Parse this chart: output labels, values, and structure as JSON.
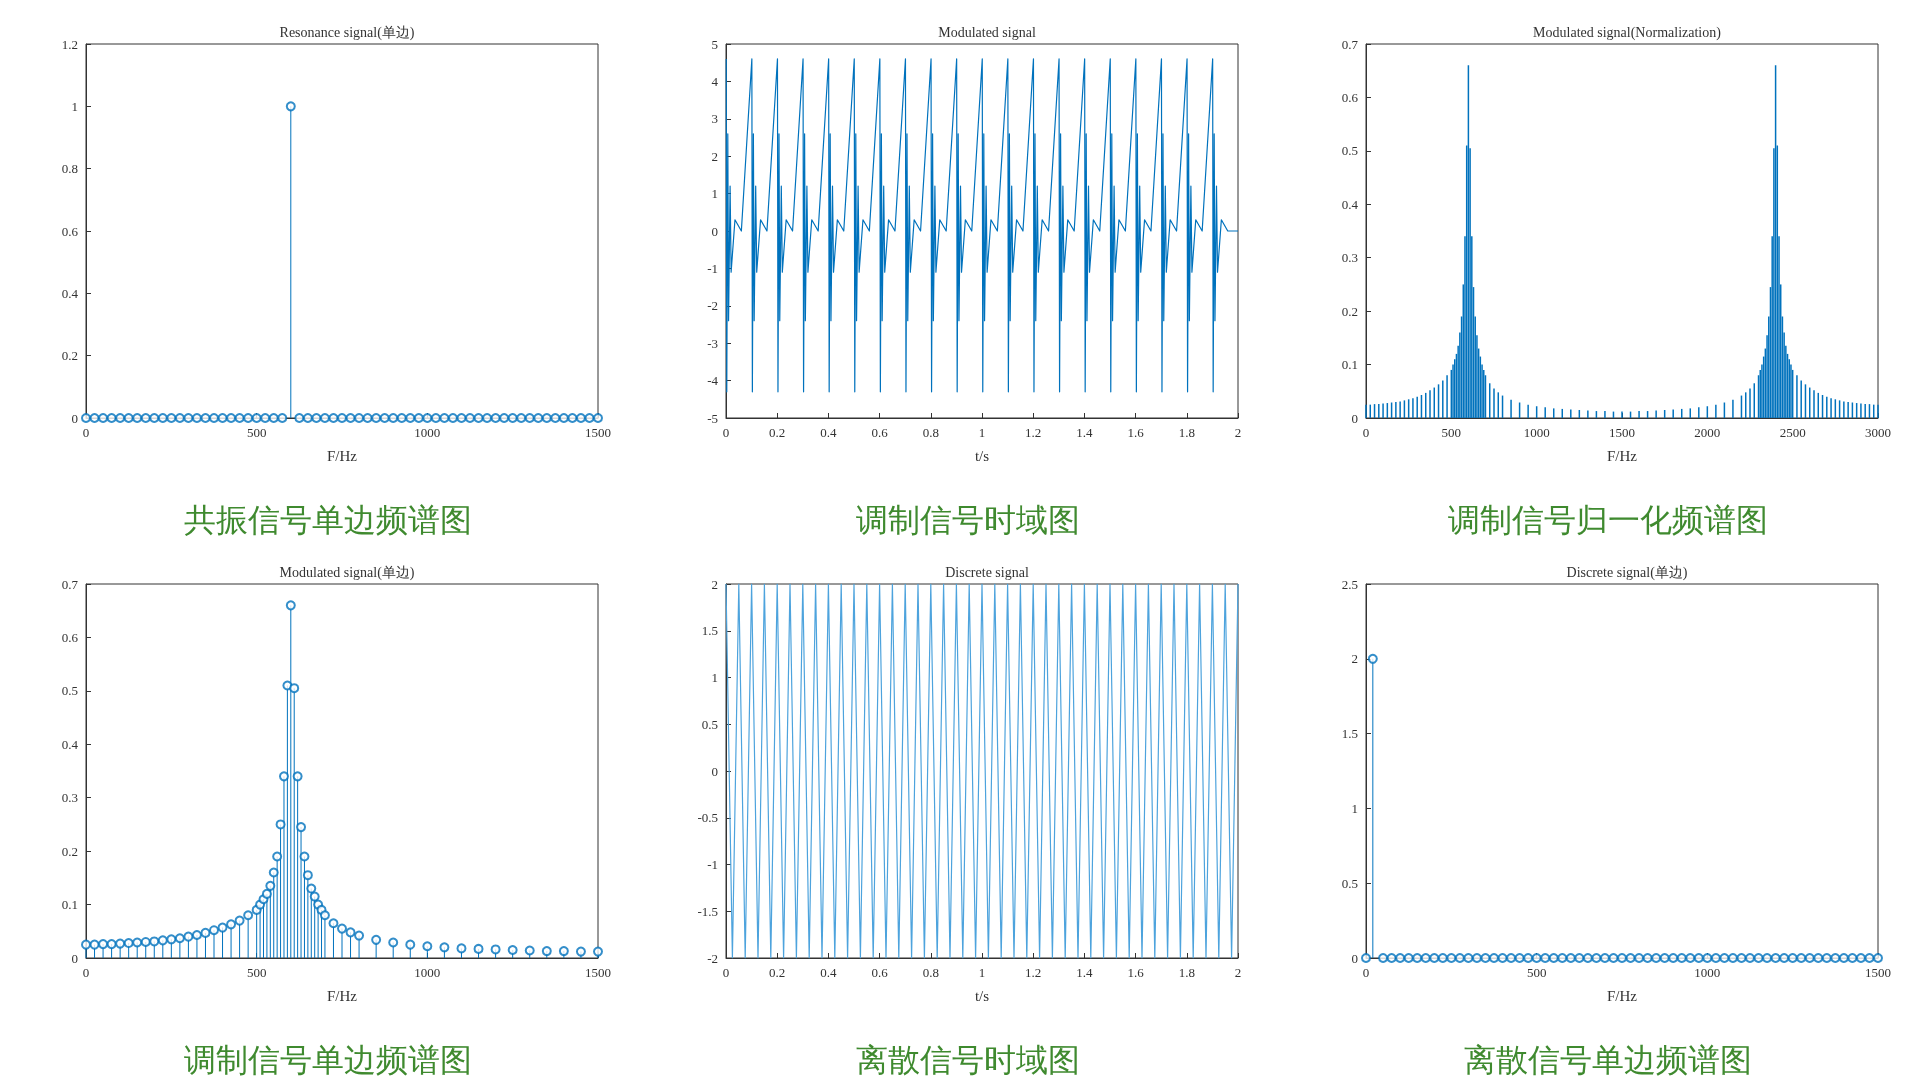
{
  "chart_data": [
    {
      "type": "lollipop",
      "title": "Resonance signal(单边)",
      "xlabel": "F/Hz",
      "xlim": [
        0,
        1500
      ],
      "ylim": [
        0,
        1.2
      ],
      "xticks": [
        0,
        500,
        1000,
        1500
      ],
      "yticks": [
        0,
        0.2,
        0.4,
        0.6,
        0.8,
        1,
        1.2
      ],
      "marker": "circle",
      "annotations": [
        "共振信号单边频谱图"
      ],
      "series": [
        {
          "color": "#0072bd",
          "x": [
            0,
            25,
            50,
            75,
            100,
            125,
            150,
            175,
            200,
            225,
            250,
            275,
            300,
            325,
            350,
            375,
            400,
            425,
            450,
            475,
            500,
            525,
            550,
            575,
            600,
            625,
            650,
            675,
            700,
            725,
            750,
            775,
            800,
            825,
            850,
            875,
            900,
            925,
            950,
            975,
            1000,
            1025,
            1050,
            1075,
            1100,
            1125,
            1150,
            1175,
            1200,
            1225,
            1250,
            1275,
            1300,
            1325,
            1350,
            1375,
            1400,
            1425,
            1450,
            1475,
            1500
          ],
          "values": [
            0,
            0,
            0,
            0,
            0,
            0,
            0,
            0,
            0,
            0,
            0,
            0,
            0,
            0,
            0,
            0,
            0,
            0,
            0,
            0,
            0,
            0,
            0,
            0,
            1,
            0,
            0,
            0,
            0,
            0,
            0,
            0,
            0,
            0,
            0,
            0,
            0,
            0,
            0,
            0,
            0,
            0,
            0,
            0,
            0,
            0,
            0,
            0,
            0,
            0,
            0,
            0,
            0,
            0,
            0,
            0,
            0,
            0,
            0,
            0,
            0
          ]
        }
      ]
    },
    {
      "type": "line",
      "title": "Modulated signal",
      "xlabel": "t/s",
      "xlim": [
        0,
        2
      ],
      "ylim": [
        -5,
        5
      ],
      "xticks": [
        0,
        0.2,
        0.4,
        0.6,
        0.8,
        1,
        1.2,
        1.4,
        1.6,
        1.8,
        2
      ],
      "yticks": [
        -5,
        -4,
        -3,
        -2,
        -1,
        0,
        1,
        2,
        3,
        4,
        5
      ],
      "annotations": [
        "调制信号时域图"
      ],
      "series": [
        {
          "color": "#0072bd",
          "x": [
            0.001,
            0.003,
            0.007,
            0.01,
            0.016,
            0.02,
            0.035,
            0.06,
            0.101,
            0.103,
            0.107,
            0.11,
            0.116,
            0.12,
            0.135,
            0.16,
            0.201,
            0.203,
            0.207,
            0.21,
            0.216,
            0.22,
            0.235,
            0.26,
            0.301,
            0.303,
            0.307,
            0.31,
            0.316,
            0.32,
            0.335,
            0.36,
            0.401,
            0.403,
            0.407,
            0.41,
            0.416,
            0.42,
            0.435,
            0.46,
            0.501,
            0.503,
            0.507,
            0.51,
            0.516,
            0.52,
            0.535,
            0.56,
            0.601,
            0.603,
            0.607,
            0.61,
            0.616,
            0.62,
            0.635,
            0.66,
            0.701,
            0.703,
            0.707,
            0.71,
            0.716,
            0.72,
            0.735,
            0.76,
            0.801,
            0.803,
            0.807,
            0.81,
            0.816,
            0.82,
            0.835,
            0.86,
            0.901,
            0.903,
            0.907,
            0.91,
            0.916,
            0.92,
            0.935,
            0.96,
            1.001,
            1.003,
            1.007,
            1.01,
            1.016,
            1.02,
            1.035,
            1.06,
            1.101,
            1.103,
            1.107,
            1.11,
            1.116,
            1.12,
            1.135,
            1.16,
            1.201,
            1.203,
            1.207,
            1.21,
            1.216,
            1.22,
            1.235,
            1.26,
            1.301,
            1.303,
            1.307,
            1.31,
            1.316,
            1.32,
            1.335,
            1.36,
            1.401,
            1.403,
            1.407,
            1.41,
            1.416,
            1.42,
            1.435,
            1.46,
            1.501,
            1.503,
            1.507,
            1.51,
            1.516,
            1.52,
            1.535,
            1.56,
            1.601,
            1.603,
            1.607,
            1.61,
            1.616,
            1.62,
            1.635,
            1.66,
            1.701,
            1.703,
            1.707,
            1.71,
            1.716,
            1.72,
            1.735,
            1.76,
            1.801,
            1.803,
            1.807,
            1.81,
            1.816,
            1.82,
            1.835,
            1.86,
            1.901,
            1.903,
            1.907,
            1.91,
            1.916,
            1.92,
            1.935,
            1.96,
            2
          ],
          "values": [
            4.6,
            -4.3,
            2.6,
            -2.4,
            1.2,
            -1.1,
            0.3,
            0,
            4.6,
            -4.3,
            2.6,
            -2.4,
            1.2,
            -1.1,
            0.3,
            0,
            4.6,
            -4.3,
            2.6,
            -2.4,
            1.2,
            -1.1,
            0.3,
            0,
            4.6,
            -4.3,
            2.6,
            -2.4,
            1.2,
            -1.1,
            0.3,
            0,
            4.6,
            -4.3,
            2.6,
            -2.4,
            1.2,
            -1.1,
            0.3,
            0,
            4.6,
            -4.3,
            2.6,
            -2.4,
            1.2,
            -1.1,
            0.3,
            0,
            4.6,
            -4.3,
            2.6,
            -2.4,
            1.2,
            -1.1,
            0.3,
            0,
            4.6,
            -4.3,
            2.6,
            -2.4,
            1.2,
            -1.1,
            0.3,
            0,
            4.6,
            -4.3,
            2.6,
            -2.4,
            1.2,
            -1.1,
            0.3,
            0,
            4.6,
            -4.3,
            2.6,
            -2.4,
            1.2,
            -1.1,
            0.3,
            0,
            4.6,
            -4.3,
            2.6,
            -2.4,
            1.2,
            -1.1,
            0.3,
            0,
            4.6,
            -4.3,
            2.6,
            -2.4,
            1.2,
            -1.1,
            0.3,
            0,
            4.6,
            -4.3,
            2.6,
            -2.4,
            1.2,
            -1.1,
            0.3,
            0,
            4.6,
            -4.3,
            2.6,
            -2.4,
            1.2,
            -1.1,
            0.3,
            0,
            4.6,
            -4.3,
            2.6,
            -2.4,
            1.2,
            -1.1,
            0.3,
            0,
            4.6,
            -4.3,
            2.6,
            -2.4,
            1.2,
            -1.1,
            0.3,
            0,
            4.6,
            -4.3,
            2.6,
            -2.4,
            1.2,
            -1.1,
            0.3,
            0,
            4.6,
            -4.3,
            2.6,
            -2.4,
            1.2,
            -1.1,
            0.3,
            0,
            4.6,
            -4.3,
            2.6,
            -2.4,
            1.2,
            -1.1,
            0.3,
            0,
            4.6,
            -4.3,
            2.6,
            -2.4,
            1.2,
            -1.1,
            0.3,
            0,
            0
          ]
        }
      ]
    },
    {
      "type": "bar",
      "title": "Modulated signal(Normalization)",
      "xlabel": "F/Hz",
      "xlim": [
        0,
        3000
      ],
      "ylim": [
        0,
        0.7
      ],
      "xticks": [
        0,
        500,
        1000,
        1500,
        2000,
        2500,
        3000
      ],
      "yticks": [
        0,
        0.1,
        0.2,
        0.3,
        0.4,
        0.5,
        0.6,
        0.7
      ],
      "annotations": [
        "调制信号归一化频谱图"
      ],
      "series": [
        {
          "color": "#0072bd",
          "x": [
            0,
            25,
            50,
            75,
            100,
            125,
            150,
            175,
            200,
            225,
            250,
            275,
            300,
            325,
            350,
            375,
            400,
            425,
            450,
            475,
            500,
            510,
            520,
            530,
            540,
            550,
            560,
            570,
            580,
            590,
            600,
            610,
            620,
            630,
            640,
            650,
            660,
            670,
            680,
            690,
            700,
            725,
            750,
            775,
            800,
            850,
            900,
            950,
            1000,
            1050,
            1100,
            1150,
            1200,
            1250,
            1300,
            1350,
            1400,
            1450,
            1500,
            1550,
            1600,
            1650,
            1700,
            1750,
            1800,
            1850,
            1900,
            1950,
            2000,
            2050,
            2100,
            2150,
            2200,
            2225,
            2250,
            2275,
            2300,
            2310,
            2320,
            2330,
            2340,
            2350,
            2360,
            2370,
            2380,
            2390,
            2400,
            2410,
            2420,
            2430,
            2440,
            2450,
            2460,
            2470,
            2480,
            2490,
            2500,
            2525,
            2550,
            2575,
            2600,
            2625,
            2650,
            2675,
            2700,
            2725,
            2750,
            2775,
            2800,
            2825,
            2850,
            2875,
            2900,
            2925,
            2950,
            2975,
            3000
          ],
          "values": [
            0.025,
            0.025,
            0.026,
            0.026,
            0.027,
            0.028,
            0.029,
            0.03,
            0.031,
            0.033,
            0.035,
            0.037,
            0.04,
            0.043,
            0.047,
            0.052,
            0.057,
            0.063,
            0.07,
            0.08,
            0.09,
            0.1,
            0.11,
            0.12,
            0.135,
            0.16,
            0.19,
            0.25,
            0.34,
            0.51,
            0.66,
            0.505,
            0.34,
            0.245,
            0.19,
            0.155,
            0.13,
            0.115,
            0.1,
            0.09,
            0.08,
            0.065,
            0.055,
            0.048,
            0.042,
            0.034,
            0.029,
            0.025,
            0.022,
            0.02,
            0.018,
            0.017,
            0.016,
            0.015,
            0.014,
            0.013,
            0.013,
            0.012,
            0.012,
            0.012,
            0.013,
            0.013,
            0.014,
            0.015,
            0.016,
            0.017,
            0.018,
            0.02,
            0.022,
            0.025,
            0.029,
            0.034,
            0.042,
            0.048,
            0.055,
            0.065,
            0.08,
            0.09,
            0.1,
            0.115,
            0.13,
            0.155,
            0.19,
            0.245,
            0.34,
            0.505,
            0.66,
            0.51,
            0.34,
            0.25,
            0.19,
            0.16,
            0.135,
            0.12,
            0.11,
            0.1,
            0.09,
            0.08,
            0.07,
            0.063,
            0.057,
            0.052,
            0.047,
            0.043,
            0.04,
            0.037,
            0.035,
            0.033,
            0.031,
            0.03,
            0.029,
            0.028,
            0.027,
            0.026,
            0.026,
            0.025,
            0.025
          ]
        }
      ]
    },
    {
      "type": "lollipop",
      "title": "Modulated signal(单边)",
      "xlabel": "F/Hz",
      "xlim": [
        0,
        1500
      ],
      "ylim": [
        0,
        0.7
      ],
      "xticks": [
        0,
        500,
        1000,
        1500
      ],
      "yticks": [
        0,
        0.1,
        0.2,
        0.3,
        0.4,
        0.5,
        0.6,
        0.7
      ],
      "marker": "circle",
      "annotations": [
        "调制信号单边频谱图"
      ],
      "series": [
        {
          "color": "#0072bd",
          "x": [
            0,
            25,
            50,
            75,
            100,
            125,
            150,
            175,
            200,
            225,
            250,
            275,
            300,
            325,
            350,
            375,
            400,
            425,
            450,
            475,
            500,
            510,
            520,
            530,
            540,
            550,
            560,
            570,
            580,
            590,
            600,
            610,
            620,
            630,
            640,
            650,
            660,
            670,
            680,
            690,
            700,
            725,
            750,
            775,
            800,
            850,
            900,
            950,
            1000,
            1050,
            1100,
            1150,
            1200,
            1250,
            1300,
            1350,
            1400,
            1450,
            1500
          ],
          "values": [
            0.025,
            0.025,
            0.026,
            0.026,
            0.027,
            0.028,
            0.029,
            0.03,
            0.031,
            0.033,
            0.035,
            0.037,
            0.04,
            0.043,
            0.047,
            0.052,
            0.057,
            0.063,
            0.07,
            0.08,
            0.09,
            0.1,
            0.11,
            0.12,
            0.135,
            0.16,
            0.19,
            0.25,
            0.34,
            0.51,
            0.66,
            0.505,
            0.34,
            0.245,
            0.19,
            0.155,
            0.13,
            0.115,
            0.1,
            0.09,
            0.08,
            0.065,
            0.055,
            0.048,
            0.042,
            0.034,
            0.029,
            0.025,
            0.022,
            0.02,
            0.018,
            0.017,
            0.016,
            0.015,
            0.014,
            0.013,
            0.013,
            0.012,
            0.012
          ]
        }
      ]
    },
    {
      "type": "line",
      "title": "Discrete signal",
      "xlabel": "t/s",
      "xlim": [
        0,
        2
      ],
      "ylim": [
        -2,
        2
      ],
      "xticks": [
        0,
        0.2,
        0.4,
        0.6,
        0.8,
        1,
        1.2,
        1.4,
        1.6,
        1.8,
        2
      ],
      "yticks": [
        -2,
        -1.5,
        -1,
        -0.5,
        0,
        0.5,
        1,
        1.5,
        2
      ],
      "annotations": [
        "离散信号时域图"
      ],
      "series": [
        {
          "color": "#4da3dd",
          "x": [
            0,
            0.025,
            0.05,
            0.075,
            0.1,
            0.125,
            0.15,
            0.175,
            0.2,
            0.225,
            0.25,
            0.275,
            0.3,
            0.325,
            0.35,
            0.375,
            0.4,
            0.425,
            0.45,
            0.475,
            0.5,
            0.525,
            0.55,
            0.575,
            0.6,
            0.625,
            0.65,
            0.675,
            0.7,
            0.725,
            0.75,
            0.775,
            0.8,
            0.825,
            0.85,
            0.875,
            0.9,
            0.925,
            0.95,
            0.975,
            1,
            1.025,
            1.05,
            1.075,
            1.1,
            1.125,
            1.15,
            1.175,
            1.2,
            1.225,
            1.25,
            1.275,
            1.3,
            1.325,
            1.35,
            1.375,
            1.4,
            1.425,
            1.45,
            1.475,
            1.5,
            1.525,
            1.55,
            1.575,
            1.6,
            1.625,
            1.65,
            1.675,
            1.7,
            1.725,
            1.75,
            1.775,
            1.8,
            1.825,
            1.85,
            1.875,
            1.9,
            1.925,
            1.95,
            1.975,
            2
          ],
          "values": [
            2,
            -2,
            2,
            -2,
            2,
            -2,
            2,
            -2,
            2,
            -2,
            2,
            -2,
            2,
            -2,
            2,
            -2,
            2,
            -2,
            2,
            -2,
            2,
            -2,
            2,
            -2,
            2,
            -2,
            2,
            -2,
            2,
            -2,
            2,
            -2,
            2,
            -2,
            2,
            -2,
            2,
            -2,
            2,
            -2,
            2,
            -2,
            2,
            -2,
            2,
            -2,
            2,
            -2,
            2,
            -2,
            2,
            -2,
            2,
            -2,
            2,
            -2,
            2,
            -2,
            2,
            -2,
            2,
            -2,
            2,
            -2,
            2,
            -2,
            2,
            -2,
            2,
            -2,
            2,
            -2,
            2,
            -2,
            2,
            -2,
            2,
            -2,
            2,
            -2,
            2
          ]
        }
      ]
    },
    {
      "type": "lollipop",
      "title": "Discrete signal(单边)",
      "xlabel": "F/Hz",
      "xlim": [
        0,
        1500
      ],
      "ylim": [
        0,
        2.5
      ],
      "xticks": [
        0,
        500,
        1000,
        1500
      ],
      "yticks": [
        0,
        0.5,
        1,
        1.5,
        2,
        2.5
      ],
      "marker": "circle",
      "annotations": [
        "离散信号单边频谱图"
      ],
      "series": [
        {
          "color": "#0072bd",
          "x": [
            0,
            20,
            50,
            75,
            100,
            125,
            150,
            175,
            200,
            225,
            250,
            275,
            300,
            325,
            350,
            375,
            400,
            425,
            450,
            475,
            500,
            525,
            550,
            575,
            600,
            625,
            650,
            675,
            700,
            725,
            750,
            775,
            800,
            825,
            850,
            875,
            900,
            925,
            950,
            975,
            1000,
            1025,
            1050,
            1075,
            1100,
            1125,
            1150,
            1175,
            1200,
            1225,
            1250,
            1275,
            1300,
            1325,
            1350,
            1375,
            1400,
            1425,
            1450,
            1475,
            1500
          ],
          "values": [
            0,
            2,
            0,
            0,
            0,
            0,
            0,
            0,
            0,
            0,
            0,
            0,
            0,
            0,
            0,
            0,
            0,
            0,
            0,
            0,
            0,
            0,
            0,
            0,
            0,
            0,
            0,
            0,
            0,
            0,
            0,
            0,
            0,
            0,
            0,
            0,
            0,
            0,
            0,
            0,
            0,
            0,
            0,
            0,
            0,
            0,
            0,
            0,
            0,
            0,
            0,
            0,
            0,
            0,
            0,
            0,
            0,
            0,
            0,
            0,
            0
          ]
        }
      ]
    }
  ]
}
